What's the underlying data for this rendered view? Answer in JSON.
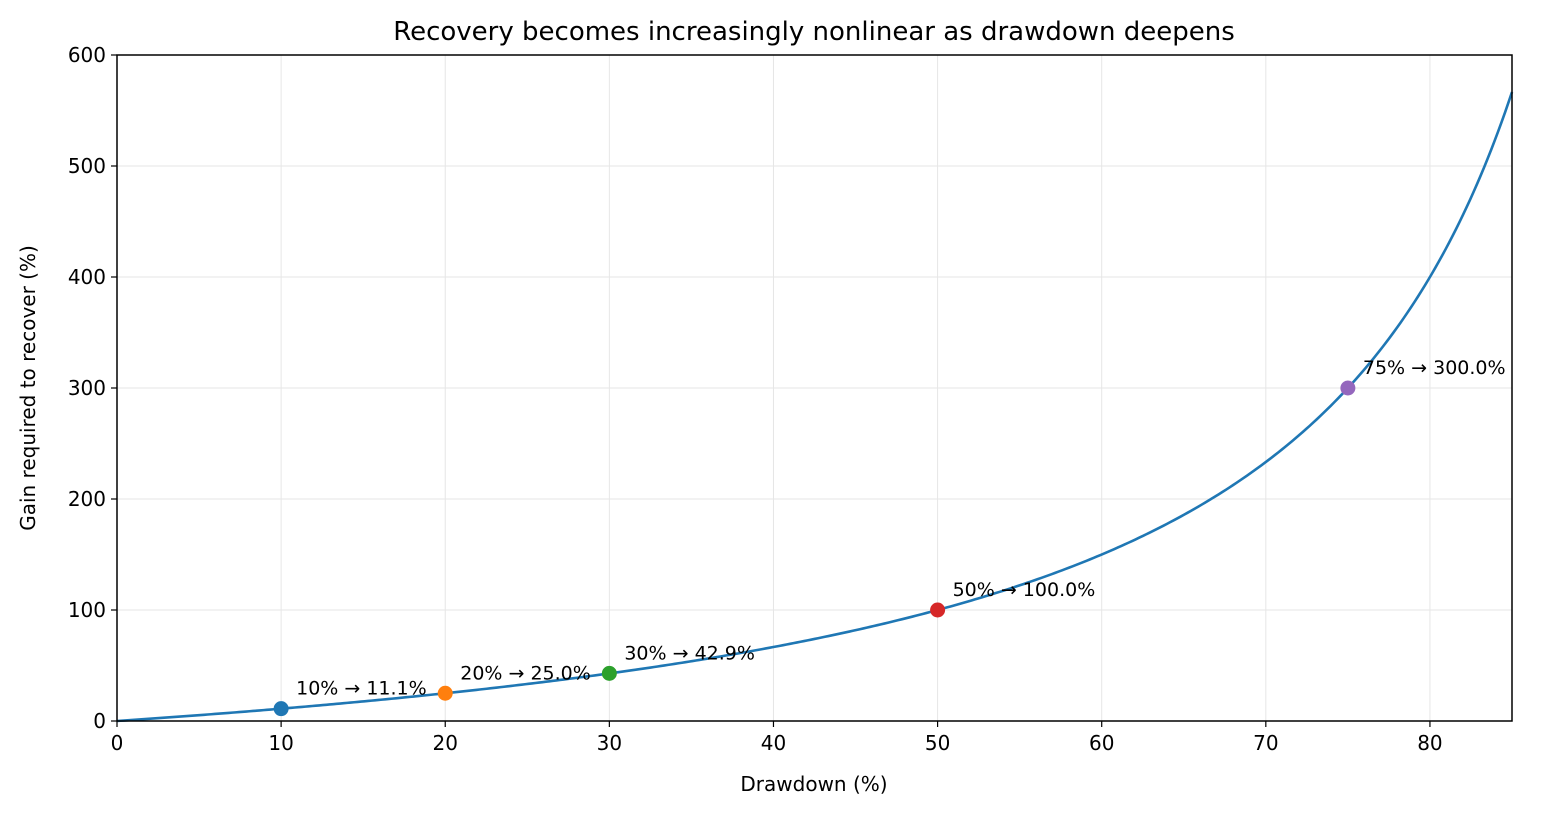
{
  "chart_data": {
    "type": "line",
    "title": "Recovery becomes increasingly nonlinear as drawdown deepens",
    "xlabel": "Drawdown (%)",
    "ylabel": "Gain required to recover (%)",
    "xlim": [
      0,
      85
    ],
    "ylim": [
      0,
      600
    ],
    "xticks": [
      0,
      10,
      20,
      30,
      40,
      50,
      60,
      70,
      80
    ],
    "yticks": [
      0,
      100,
      200,
      300,
      400,
      500,
      600
    ],
    "grid": true,
    "series": [
      {
        "color": "#1f77b4",
        "formula": "100 * d / (100 - d)",
        "x": [
          0,
          5,
          10,
          15,
          20,
          25,
          30,
          35,
          40,
          45,
          50,
          55,
          60,
          65,
          70,
          75,
          80,
          85
        ],
        "y": [
          0,
          5.3,
          11.1,
          17.6,
          25.0,
          33.3,
          42.9,
          53.8,
          66.7,
          81.8,
          100.0,
          122.2,
          150.0,
          185.7,
          233.3,
          300.0,
          400.0,
          566.7
        ]
      }
    ],
    "highlighted_points": [
      {
        "x": 10,
        "y": 11.1,
        "label": "10% → 11.1%",
        "color": "#1f77b4"
      },
      {
        "x": 20,
        "y": 25.0,
        "label": "20% → 25.0%",
        "color": "#ff7f0e"
      },
      {
        "x": 30,
        "y": 42.9,
        "label": "30% → 42.9%",
        "color": "#2ca02c"
      },
      {
        "x": 50,
        "y": 100.0,
        "label": "50% → 100.0%",
        "color": "#d62728"
      },
      {
        "x": 75,
        "y": 300.0,
        "label": "75% → 300.0%",
        "color": "#9467bd"
      }
    ]
  }
}
